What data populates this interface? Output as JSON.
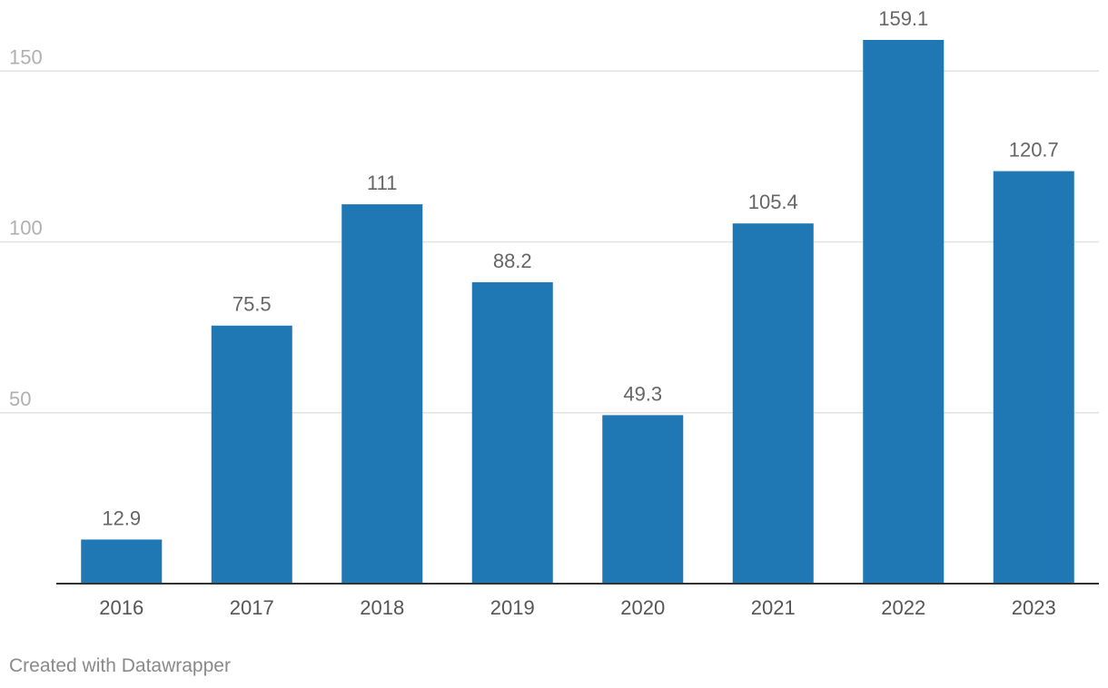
{
  "chart_data": {
    "type": "bar",
    "categories": [
      "2016",
      "2017",
      "2018",
      "2019",
      "2020",
      "2021",
      "2022",
      "2023"
    ],
    "values": [
      12.9,
      75.5,
      111,
      88.2,
      49.3,
      105.4,
      159.1,
      120.7
    ],
    "value_labels": [
      "12.9",
      "75.5",
      "111",
      "88.2",
      "49.3",
      "105.4",
      "159.1",
      "120.7"
    ],
    "y_ticks": [
      50,
      100,
      150
    ],
    "ylim": [
      0,
      160
    ],
    "grid": true,
    "legend": "none",
    "bar_color": "#1f77b4"
  },
  "footer": {
    "credit": "Created with Datawrapper"
  }
}
